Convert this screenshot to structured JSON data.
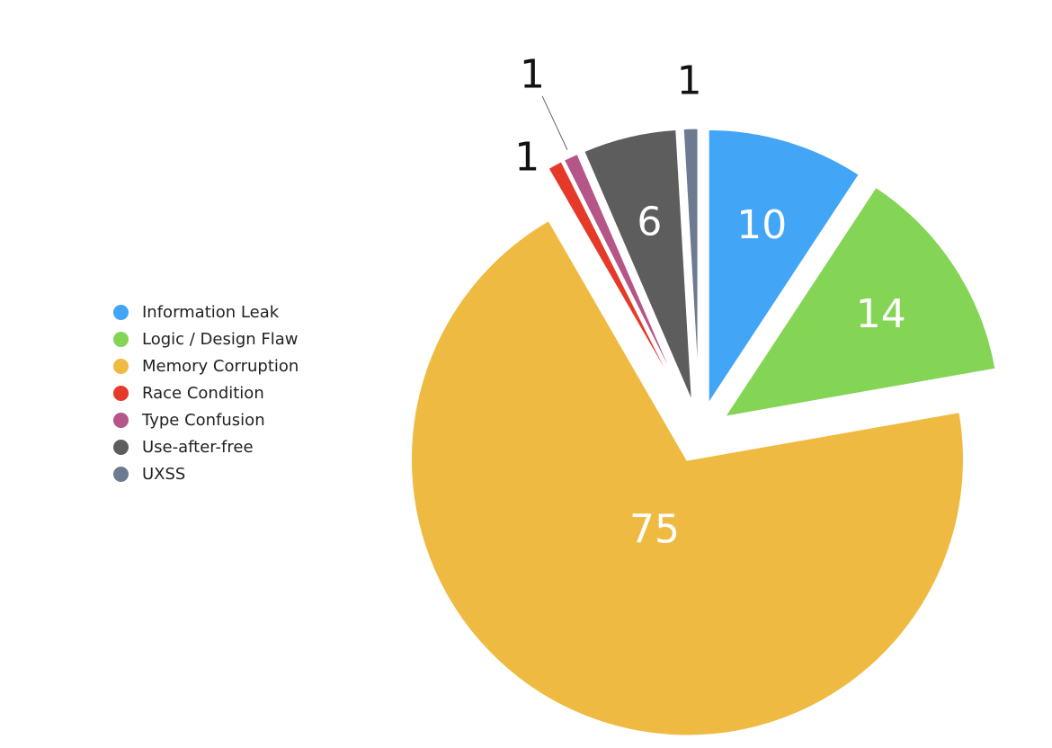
{
  "chart_data": {
    "type": "pie",
    "title": "",
    "slices": [
      {
        "label": "Information Leak",
        "value": 10,
        "color": "#42A5F5"
      },
      {
        "label": "Logic / Design Flaw",
        "value": 14,
        "color": "#84D455"
      },
      {
        "label": "Memory Corruption",
        "value": 75,
        "color": "#EFBA41"
      },
      {
        "label": "Race Condition",
        "value": 1,
        "color": "#E53A2A"
      },
      {
        "label": "Type Confusion",
        "value": 1,
        "color": "#B65587"
      },
      {
        "label": "Use-after-free",
        "value": 6,
        "color": "#5D5D5D"
      },
      {
        "label": "UXSS",
        "value": 1,
        "color": "#6E7A8F"
      }
    ],
    "data_labels": [
      "10",
      "14",
      "75",
      "1",
      "1",
      "6",
      "1"
    ],
    "legend_position": "left",
    "exploded": true,
    "start_angle": "12 o'clock, clockwise"
  }
}
